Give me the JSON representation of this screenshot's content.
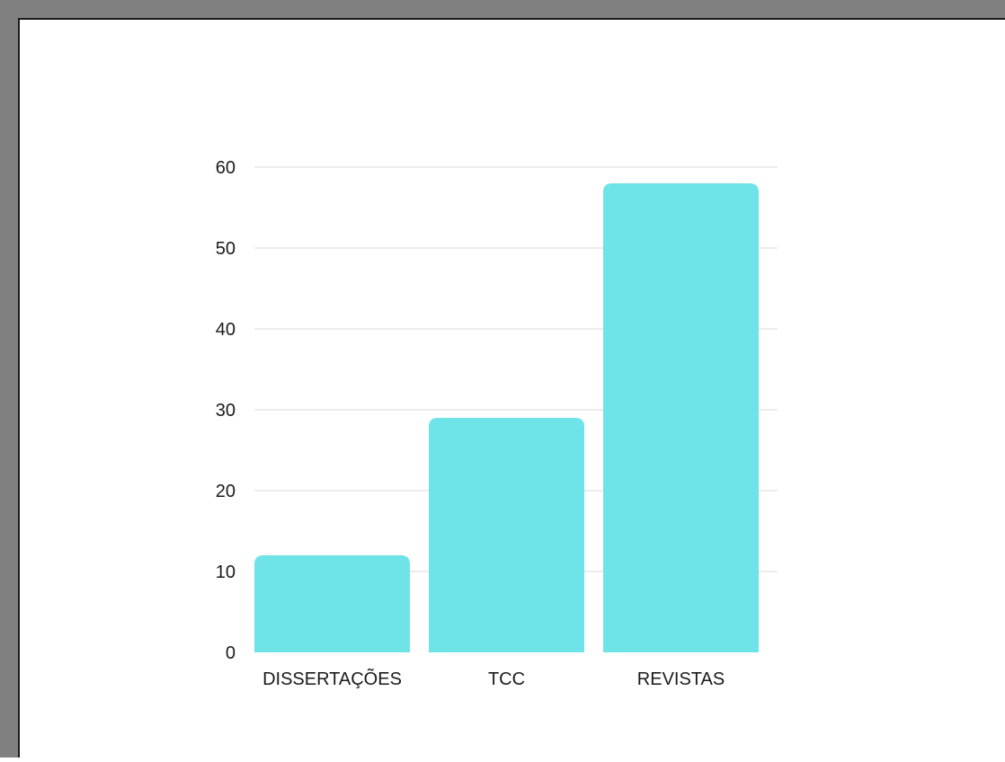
{
  "chart_data": {
    "type": "bar",
    "categories": [
      "DISSERTAÇÕES",
      "TCC",
      "REVISTAS"
    ],
    "values": [
      12,
      29,
      58
    ],
    "ylim": [
      0,
      60
    ],
    "yticks": [
      0,
      10,
      20,
      30,
      40,
      50,
      60
    ],
    "title": "",
    "xlabel": "",
    "ylabel": "",
    "grid": true,
    "bar_color": "#6ee3e8",
    "grid_color": "#d9d9d9"
  }
}
